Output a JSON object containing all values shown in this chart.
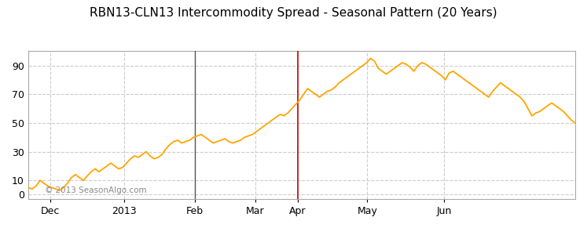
{
  "title": "RBN13-CLN13 Intercommodity Spread - Seasonal Pattern (20 Years)",
  "title_fontsize": 11,
  "ylabel_ticks": [
    0,
    10,
    30,
    50,
    70,
    90
  ],
  "ylim": [
    -3,
    100
  ],
  "background_color": "#ffffff",
  "plot_bg_color": "#ffffff",
  "grid_color": "#cccccc",
  "line_color": "#FFA500",
  "line_width": 1.3,
  "vline_color": "#cc0000",
  "vline_x": 0.493,
  "dark_vline_x": 0.305,
  "dark_vline_color": "#555555",
  "watermark": "© 2013 SeasonAlgo.com",
  "x_tick_labels": [
    "Dec",
    "2013",
    "Feb",
    "Mar",
    "Apr",
    "May",
    "Jun"
  ],
  "x_tick_positions": [
    0.04,
    0.175,
    0.305,
    0.415,
    0.493,
    0.62,
    0.76
  ],
  "y_data": [
    5,
    4,
    6,
    10,
    8,
    6,
    5,
    4,
    3,
    5,
    8,
    12,
    14,
    12,
    10,
    13,
    16,
    18,
    16,
    18,
    20,
    22,
    20,
    18,
    19,
    22,
    25,
    27,
    26,
    28,
    30,
    27,
    25,
    26,
    28,
    32,
    35,
    37,
    38,
    36,
    37,
    38,
    40,
    41,
    42,
    40,
    38,
    36,
    37,
    38,
    39,
    37,
    36,
    37,
    38,
    40,
    41,
    42,
    44,
    46,
    48,
    50,
    52,
    54,
    56,
    55,
    57,
    60,
    63,
    66,
    70,
    74,
    72,
    70,
    68,
    70,
    72,
    73,
    75,
    78,
    80,
    82,
    84,
    86,
    88,
    90,
    92,
    95,
    93,
    88,
    86,
    84,
    86,
    88,
    90,
    92,
    91,
    89,
    86,
    90,
    92,
    91,
    89,
    87,
    85,
    83,
    80,
    85,
    86,
    84,
    82,
    80,
    78,
    76,
    74,
    72,
    70,
    68,
    72,
    75,
    78,
    76,
    74,
    72,
    70,
    68,
    65,
    60,
    55,
    57,
    58,
    60,
    62,
    64,
    62,
    60,
    58,
    55,
    52,
    50
  ]
}
